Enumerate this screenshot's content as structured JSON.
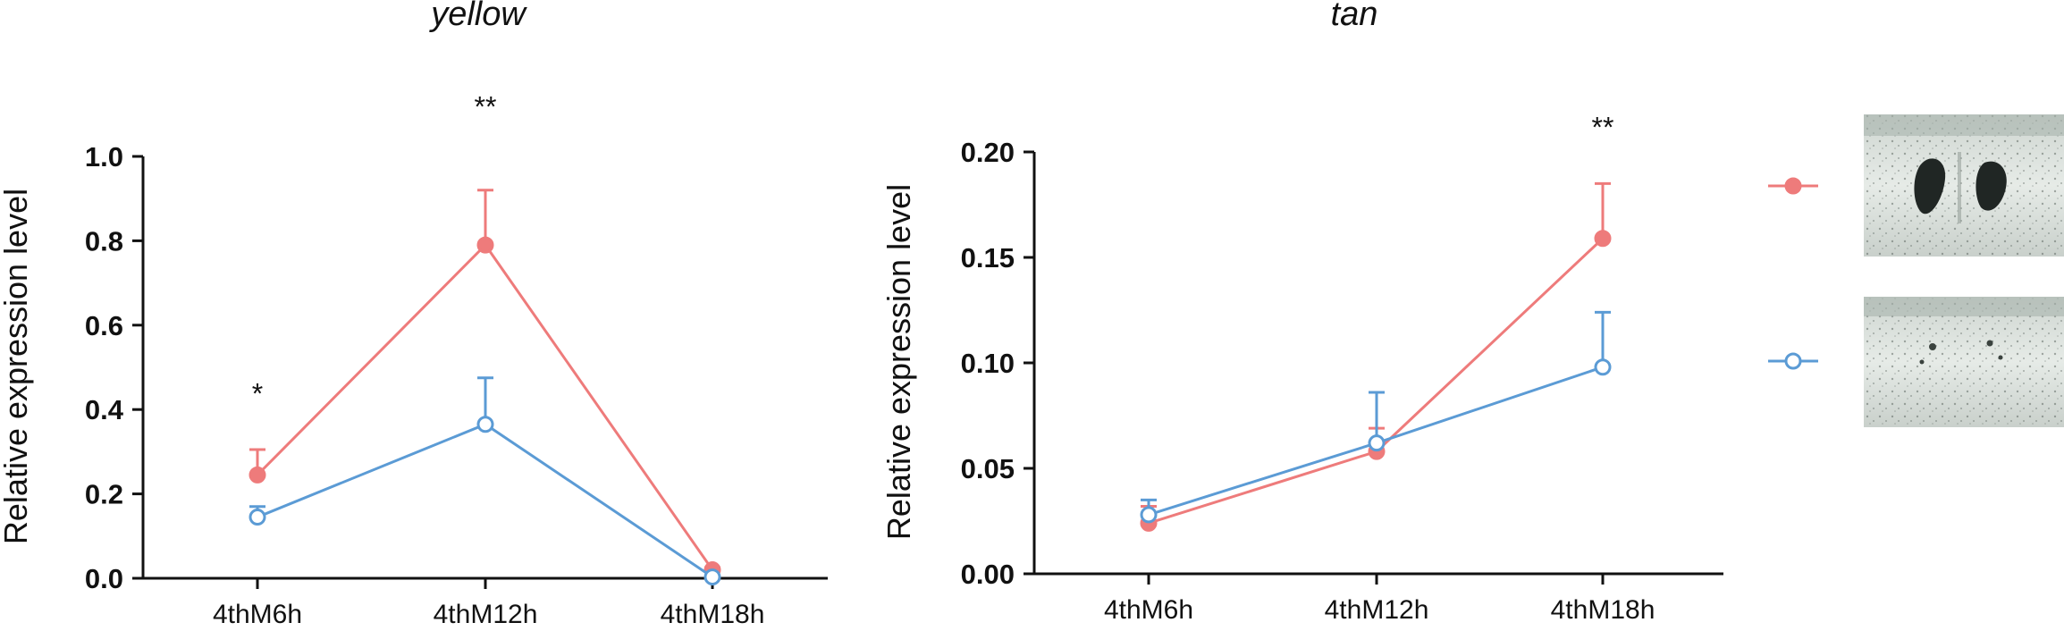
{
  "colors": {
    "red": "#ee7b7b",
    "blue": "#5b9bd5"
  },
  "chart_data": [
    {
      "type": "line",
      "title": "yellow",
      "xlabel": "",
      "ylabel": "Relative expression level",
      "categories": [
        "4thM6h",
        "4thM12h",
        "4thM18h"
      ],
      "ylim": [
        0,
        1.0
      ],
      "yticks": [
        "0.0",
        "0.2",
        "0.4",
        "0.6",
        "0.8",
        "1.0"
      ],
      "series": [
        {
          "color": "red",
          "marker": "filled",
          "values": [
            0.245,
            0.79,
            0.02
          ],
          "errors": [
            0.06,
            0.13,
            0.005
          ]
        },
        {
          "color": "blue",
          "marker": "open",
          "values": [
            0.145,
            0.365,
            0.003
          ],
          "errors": [
            0.025,
            0.11,
            0.002
          ]
        }
      ],
      "significance": [
        {
          "category": "4thM6h",
          "label": "*",
          "y": 0.44
        },
        {
          "category": "4thM12h",
          "label": "**",
          "y": 1.12
        }
      ]
    },
    {
      "type": "line",
      "title": "tan",
      "xlabel": "",
      "ylabel": "Relative expression level",
      "categories": [
        "4thM6h",
        "4thM12h",
        "4thM18h"
      ],
      "ylim": [
        0,
        0.2
      ],
      "yticks": [
        "0.00",
        "0.05",
        "0.10",
        "0.15",
        "0.20"
      ],
      "series": [
        {
          "color": "red",
          "marker": "filled",
          "values": [
            0.024,
            0.058,
            0.159
          ],
          "errors": [
            0.008,
            0.011,
            0.026
          ]
        },
        {
          "color": "blue",
          "marker": "open",
          "values": [
            0.028,
            0.062,
            0.098
          ],
          "errors": [
            0.007,
            0.024,
            0.026
          ]
        }
      ],
      "significance": [
        {
          "category": "4thM18h",
          "label": "**",
          "y": 0.212
        }
      ]
    }
  ],
  "legend": [
    {
      "color": "red",
      "marker": "filled",
      "image": "larva-with-dark-spots"
    },
    {
      "color": "blue",
      "marker": "open",
      "image": "larva-without-spots"
    }
  ]
}
